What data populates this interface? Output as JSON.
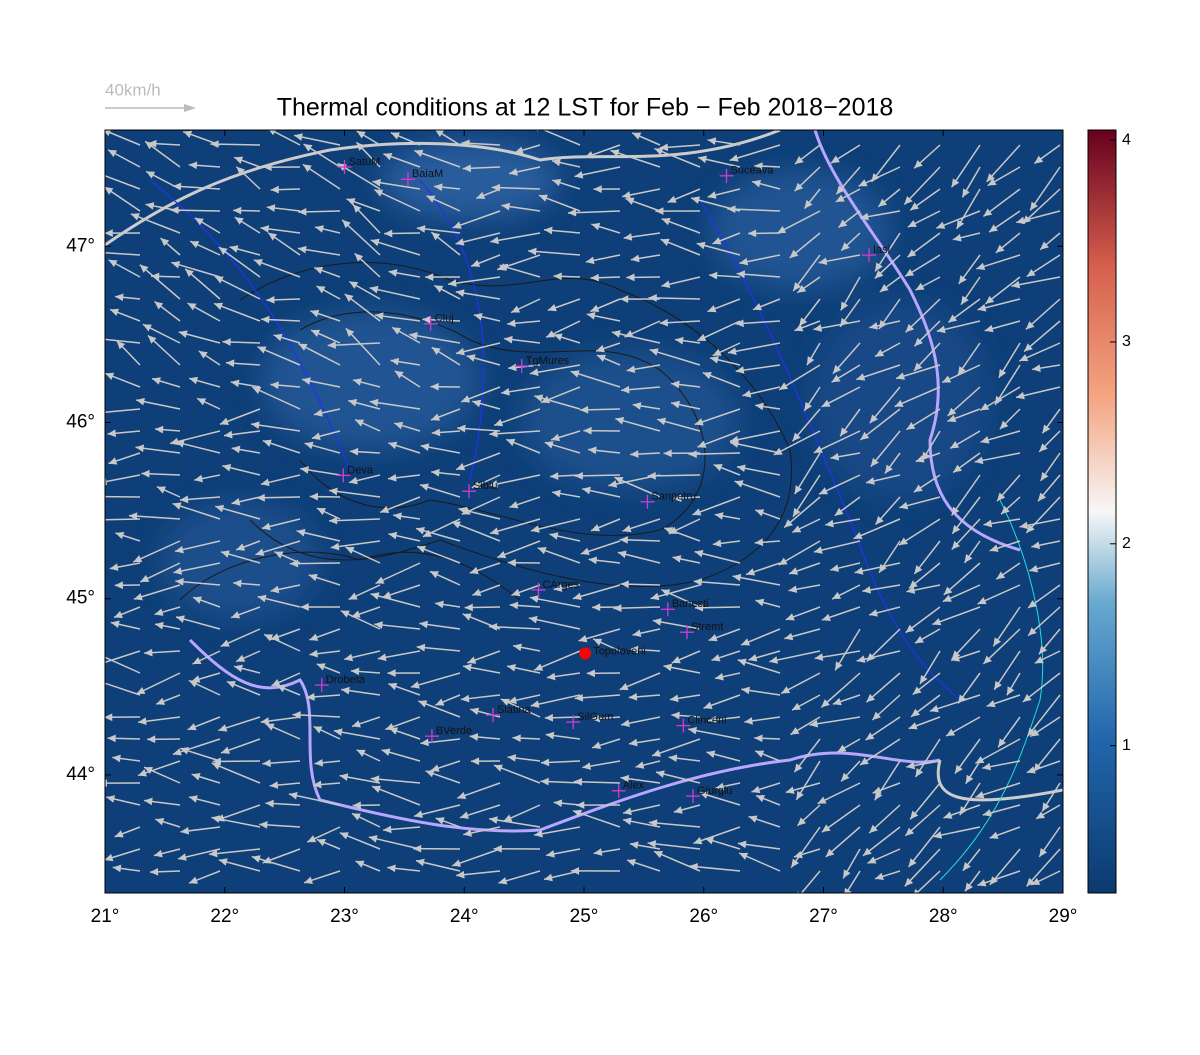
{
  "title": "Thermal conditions at 12 LST for Feb − Feb  2018−2018",
  "wind_legend": "40km/h",
  "lonlim": [
    21,
    29
  ],
  "latlim": [
    43.33,
    47.66
  ],
  "lon_ticks": [
    {
      "value": 21,
      "label": "21°"
    },
    {
      "value": 22,
      "label": "22°"
    },
    {
      "value": 23,
      "label": "23°"
    },
    {
      "value": 24,
      "label": "24°"
    },
    {
      "value": 25,
      "label": "25°"
    },
    {
      "value": 26,
      "label": "26°"
    },
    {
      "value": 27,
      "label": "27°"
    },
    {
      "value": 28,
      "label": "28°"
    },
    {
      "value": 29,
      "label": "29°"
    }
  ],
  "lat_ticks": [
    {
      "value": 44,
      "label": "44°"
    },
    {
      "value": 45,
      "label": "45°"
    },
    {
      "value": 46,
      "label": "46°"
    },
    {
      "value": 47,
      "label": "47°"
    }
  ],
  "colorbar": {
    "lim": [
      0.27,
      4.05
    ],
    "ticks": [
      1,
      2,
      3,
      4
    ]
  },
  "cities": [
    {
      "name": "SatuM",
      "lon": 23.0,
      "lat": 47.45
    },
    {
      "name": "BaiaM",
      "lon": 23.53,
      "lat": 47.38
    },
    {
      "name": "Suceava",
      "lon": 26.19,
      "lat": 47.4
    },
    {
      "name": "Iasi",
      "lon": 27.38,
      "lat": 46.95
    },
    {
      "name": "Cluj",
      "lon": 23.72,
      "lat": 46.56
    },
    {
      "name": "TgMures",
      "lon": 24.48,
      "lat": 46.32
    },
    {
      "name": "Deva",
      "lon": 22.99,
      "lat": 45.7
    },
    {
      "name": "Sibiu",
      "lon": 24.04,
      "lat": 45.61
    },
    {
      "name": "Sanpetru",
      "lon": 25.53,
      "lat": 45.55
    },
    {
      "name": "CArges",
      "lon": 24.62,
      "lat": 45.05
    },
    {
      "name": "Banesti",
      "lon": 25.7,
      "lat": 44.94
    },
    {
      "name": "Stremt",
      "lon": 25.86,
      "lat": 44.81
    },
    {
      "name": "Drobeta",
      "lon": 22.81,
      "lat": 44.51
    },
    {
      "name": "Slatina",
      "lon": 24.24,
      "lat": 44.34
    },
    {
      "name": "SilGum",
      "lon": 24.91,
      "lat": 44.3
    },
    {
      "name": "BVerde",
      "lon": 23.73,
      "lat": 44.22
    },
    {
      "name": "Clinceni",
      "lon": 25.83,
      "lat": 44.28
    },
    {
      "name": "Alex",
      "lon": 25.29,
      "lat": 43.91
    },
    {
      "name": "Giurgiu",
      "lon": 25.91,
      "lat": 43.88
    }
  ],
  "site": {
    "name": "Topoloveni",
    "lon": 25.01,
    "lat": 44.69
  }
}
